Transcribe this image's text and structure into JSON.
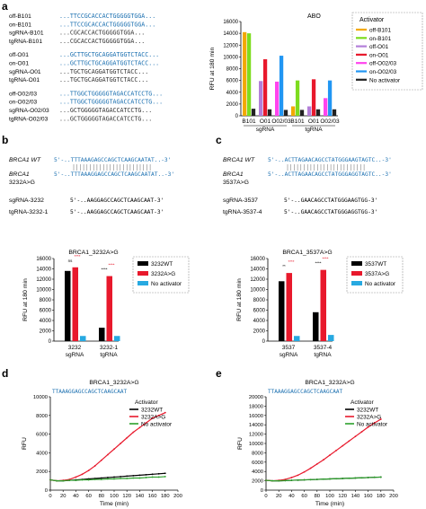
{
  "panels": {
    "a": {
      "letter": "a",
      "seq_rows": [
        {
          "name": "off-B101",
          "seq": "...TTCCGCACCACTGGGGGTGGA..."
        },
        {
          "name": "on-B101",
          "seq": "...TTCCGCACCACTGGGGGTGGA..."
        },
        {
          "name": "sgRNA-B101",
          "seq": "...CGCACCACTGGGGGTGGA..."
        },
        {
          "name": "tgRNA-B101",
          "seq": "...CGCACCACTGGGGGTGGA..."
        },
        {
          "name": "off-O01",
          "seq": "...GCTTGCTGCAGGATGGTCTACC..."
        },
        {
          "name": "on-O01",
          "seq": "...GCTTGCTGCAGGATGGTCTACC..."
        },
        {
          "name": "sgRNA-O01",
          "seq": "...TGCTGCAGGATGGTCTACC..."
        },
        {
          "name": "tgRNA-O01",
          "seq": "...TGCTGCAGGATGGTCTACC..."
        },
        {
          "name": "off-O02/03",
          "seq": "...TTGGCTGGGGGTAGACCATCCTG..."
        },
        {
          "name": "on-O02/03",
          "seq": "...TTGGCTGGGGGTAGACCATCCTG..."
        },
        {
          "name": "sgRNA-O02/03",
          "seq": "...GCTGGGGGTAGACCATCCTG..."
        },
        {
          "name": "tgRNA-O02/03",
          "seq": "...GCTGGGGGTAGACCATCCTG..."
        }
      ]
    },
    "b": {
      "letter": "b",
      "wt_name": "BRCA1 WT",
      "wt_seq": "5'-..TTTAAAGAGCCAGCTCAAGCAATAT..-3'",
      "mut_name_1": "BRCA1",
      "mut_name_2": "3232A>G",
      "mut_seq": "5'-..TTTAAAGGAGCCAGCTCAAGCAATAT..-3'",
      "guides": [
        {
          "name": "sgRNA-3232",
          "seq": "5'-..AAGGAGCCAGCTCAAGCAAT-3'"
        },
        {
          "name": "tgRNA-3232-1",
          "seq": "5'-..AAGGAGCCAGCTCAAGCAAT-3'"
        }
      ]
    },
    "c": {
      "letter": "c",
      "wt_name": "BRCA1 WT",
      "wt_seq": "5'-..ACTTAGAACAGCCTATGGGAAGTAGTC..-3'",
      "mut_name_1": "BRCA1",
      "mut_name_2": "3537A>G",
      "mut_seq": "5'-..ACTTAGAACAGCCTATGGGAGGTAGTC..-3'",
      "guides": [
        {
          "name": "sgRNA-3537",
          "seq": "5'-..GAACAGCCTATGGGAAGTGG-3'"
        },
        {
          "name": "tgRNA-3537-4",
          "seq": "5'-..GAACAGCCTATGGGAGGTGG-3'"
        }
      ]
    },
    "d": {
      "letter": "d",
      "seq_label": "TTAAAGGAGCCAGCTCAAGCAAT"
    },
    "e": {
      "letter": "e",
      "seq_label": "TTAAAGGAGCCAGCTCAAGCAAT"
    }
  },
  "chart_data": [
    {
      "id": "a",
      "type": "bar",
      "title": "ABO",
      "ylabel": "RFU at 180 min",
      "ylim": [
        0,
        16000
      ],
      "yticks": [
        0,
        2000,
        4000,
        6000,
        8000,
        10000,
        12000,
        14000,
        16000
      ],
      "group_labels": [
        "B101",
        "O01",
        "O02/03",
        "B101",
        "O01",
        "O02/03"
      ],
      "category_labels": [
        "sgRNA",
        "tgRNA"
      ],
      "legend_title": "Activator",
      "series": [
        {
          "name": "off-B101",
          "color": "#f2a900"
        },
        {
          "name": "on-B101",
          "color": "#7ddc1f"
        },
        {
          "name": "off-O01",
          "color": "#b37fd9"
        },
        {
          "name": "on-O01",
          "color": "#e8192c"
        },
        {
          "name": "off-O02/03",
          "color": "#ff44ee"
        },
        {
          "name": "on-O02/03",
          "color": "#2196f3"
        },
        {
          "name": "No activator",
          "color": "#222222"
        }
      ],
      "bars": [
        {
          "group": 0,
          "series": 0,
          "value": 14200
        },
        {
          "group": 0,
          "series": 1,
          "value": 14000
        },
        {
          "group": 0,
          "series": 6,
          "value": 1200
        },
        {
          "group": 1,
          "series": 2,
          "value": 5900
        },
        {
          "group": 1,
          "series": 3,
          "value": 9600
        },
        {
          "group": 1,
          "series": 6,
          "value": 1100
        },
        {
          "group": 2,
          "series": 4,
          "value": 5800
        },
        {
          "group": 2,
          "series": 5,
          "value": 10200
        },
        {
          "group": 2,
          "series": 6,
          "value": 1000
        },
        {
          "group": 3,
          "series": 0,
          "value": 1600
        },
        {
          "group": 3,
          "series": 1,
          "value": 6000
        },
        {
          "group": 3,
          "series": 6,
          "value": 1000
        },
        {
          "group": 4,
          "series": 2,
          "value": 1600
        },
        {
          "group": 4,
          "series": 3,
          "value": 6200
        },
        {
          "group": 4,
          "series": 6,
          "value": 1100
        },
        {
          "group": 5,
          "series": 4,
          "value": 3000
        },
        {
          "group": 5,
          "series": 5,
          "value": 6000
        },
        {
          "group": 5,
          "series": 6,
          "value": 1100
        }
      ]
    },
    {
      "id": "b",
      "type": "bar",
      "title": "BRCA1_3232A>G",
      "ylabel": "RFU at 180 min",
      "ylim": [
        0,
        16000
      ],
      "yticks": [
        0,
        2000,
        4000,
        6000,
        8000,
        10000,
        12000,
        14000,
        16000
      ],
      "categories": [
        "3232",
        "3232-1"
      ],
      "category_sub": [
        "sgRNA",
        "tgRNA"
      ],
      "series": [
        {
          "name": "3232WT",
          "color": "#000000",
          "values": [
            13600,
            2600
          ]
        },
        {
          "name": "3232A>G",
          "color": "#e8192c",
          "values": [
            14300,
            12600
          ]
        },
        {
          "name": "No activator",
          "color": "#27a9e1",
          "values": [
            1000,
            1000
          ]
        }
      ],
      "significance": [
        "ns",
        "****",
        "****",
        "****"
      ]
    },
    {
      "id": "c",
      "type": "bar",
      "title": "BRCA1_3537A>G",
      "ylabel": "RFU at 180 min",
      "ylim": [
        0,
        16000
      ],
      "yticks": [
        0,
        2000,
        4000,
        6000,
        8000,
        10000,
        12000,
        14000,
        16000
      ],
      "categories": [
        "3537",
        "3537-4"
      ],
      "category_sub": [
        "sgRNA",
        "tgRNA"
      ],
      "series": [
        {
          "name": "3537WT",
          "color": "#000000",
          "values": [
            11600,
            5600
          ]
        },
        {
          "name": "3537A>G",
          "color": "#e8192c",
          "values": [
            13200,
            13800
          ]
        },
        {
          "name": "No activator",
          "color": "#27a9e1",
          "values": [
            1000,
            1200
          ]
        }
      ],
      "significance": [
        "**",
        "****",
        "****",
        "****"
      ]
    },
    {
      "id": "d",
      "type": "line",
      "title": "BRCA1_3232A>G",
      "xlabel": "Time (min)",
      "ylabel": "RFU",
      "xlim": [
        0,
        200
      ],
      "ylim": [
        0,
        10000
      ],
      "xticks": [
        0,
        20,
        40,
        60,
        80,
        100,
        120,
        140,
        160,
        180,
        200
      ],
      "yticks": [
        0,
        2000,
        4000,
        6000,
        8000,
        10000
      ],
      "legend_title": "Activator",
      "x": [
        0,
        10,
        20,
        30,
        40,
        50,
        60,
        70,
        80,
        90,
        100,
        110,
        120,
        130,
        140,
        150,
        160,
        170,
        180
      ],
      "series": [
        {
          "name": "3232WT",
          "color": "#000000",
          "values": [
            1100,
            1000,
            1000,
            1050,
            1100,
            1150,
            1200,
            1250,
            1300,
            1350,
            1400,
            1450,
            1500,
            1550,
            1600,
            1650,
            1700,
            1750,
            1800
          ]
        },
        {
          "name": "3232A>G",
          "color": "#e8192c",
          "values": [
            1100,
            1000,
            1050,
            1150,
            1400,
            1700,
            2100,
            2600,
            3200,
            3800,
            4400,
            5000,
            5600,
            6200,
            6700,
            7200,
            7700,
            8000,
            8300
          ]
        },
        {
          "name": "No activator",
          "color": "#2ca02c",
          "values": [
            1100,
            1000,
            1000,
            1050,
            1050,
            1100,
            1100,
            1150,
            1150,
            1200,
            1200,
            1250,
            1250,
            1300,
            1300,
            1350,
            1400,
            1400,
            1450
          ]
        }
      ]
    },
    {
      "id": "e",
      "type": "line",
      "title": "BRCA1_3232A>G",
      "xlabel": "Time (min)",
      "ylabel": "RFU",
      "xlim": [
        0,
        200
      ],
      "ylim": [
        0,
        20000
      ],
      "xticks": [
        0,
        20,
        40,
        60,
        80,
        100,
        120,
        140,
        160,
        180,
        200
      ],
      "yticks": [
        0,
        2000,
        4000,
        6000,
        8000,
        10000,
        12000,
        14000,
        16000,
        18000,
        20000
      ],
      "legend_title": "Activator",
      "x": [
        0,
        10,
        20,
        30,
        40,
        50,
        60,
        70,
        80,
        90,
        100,
        110,
        120,
        130,
        140,
        150,
        160,
        170,
        180
      ],
      "series": [
        {
          "name": "3232WT",
          "color": "#000000",
          "values": [
            2100,
            2000,
            2000,
            2050,
            2100,
            2150,
            2200,
            2250,
            2300,
            2350,
            2400,
            2450,
            2500,
            2550,
            2600,
            2650,
            2700,
            2750,
            2800
          ]
        },
        {
          "name": "3232A>G",
          "color": "#e8192c",
          "values": [
            2100,
            2000,
            2100,
            2300,
            2700,
            3200,
            3900,
            4700,
            5600,
            6500,
            7500,
            8500,
            9500,
            10500,
            11500,
            12500,
            13500,
            14400,
            15200
          ]
        },
        {
          "name": "No activator",
          "color": "#2ca02c",
          "values": [
            2100,
            2000,
            2000,
            2050,
            2100,
            2150,
            2200,
            2250,
            2300,
            2350,
            2400,
            2450,
            2500,
            2550,
            2600,
            2650,
            2700,
            2750,
            2800
          ]
        }
      ]
    }
  ]
}
